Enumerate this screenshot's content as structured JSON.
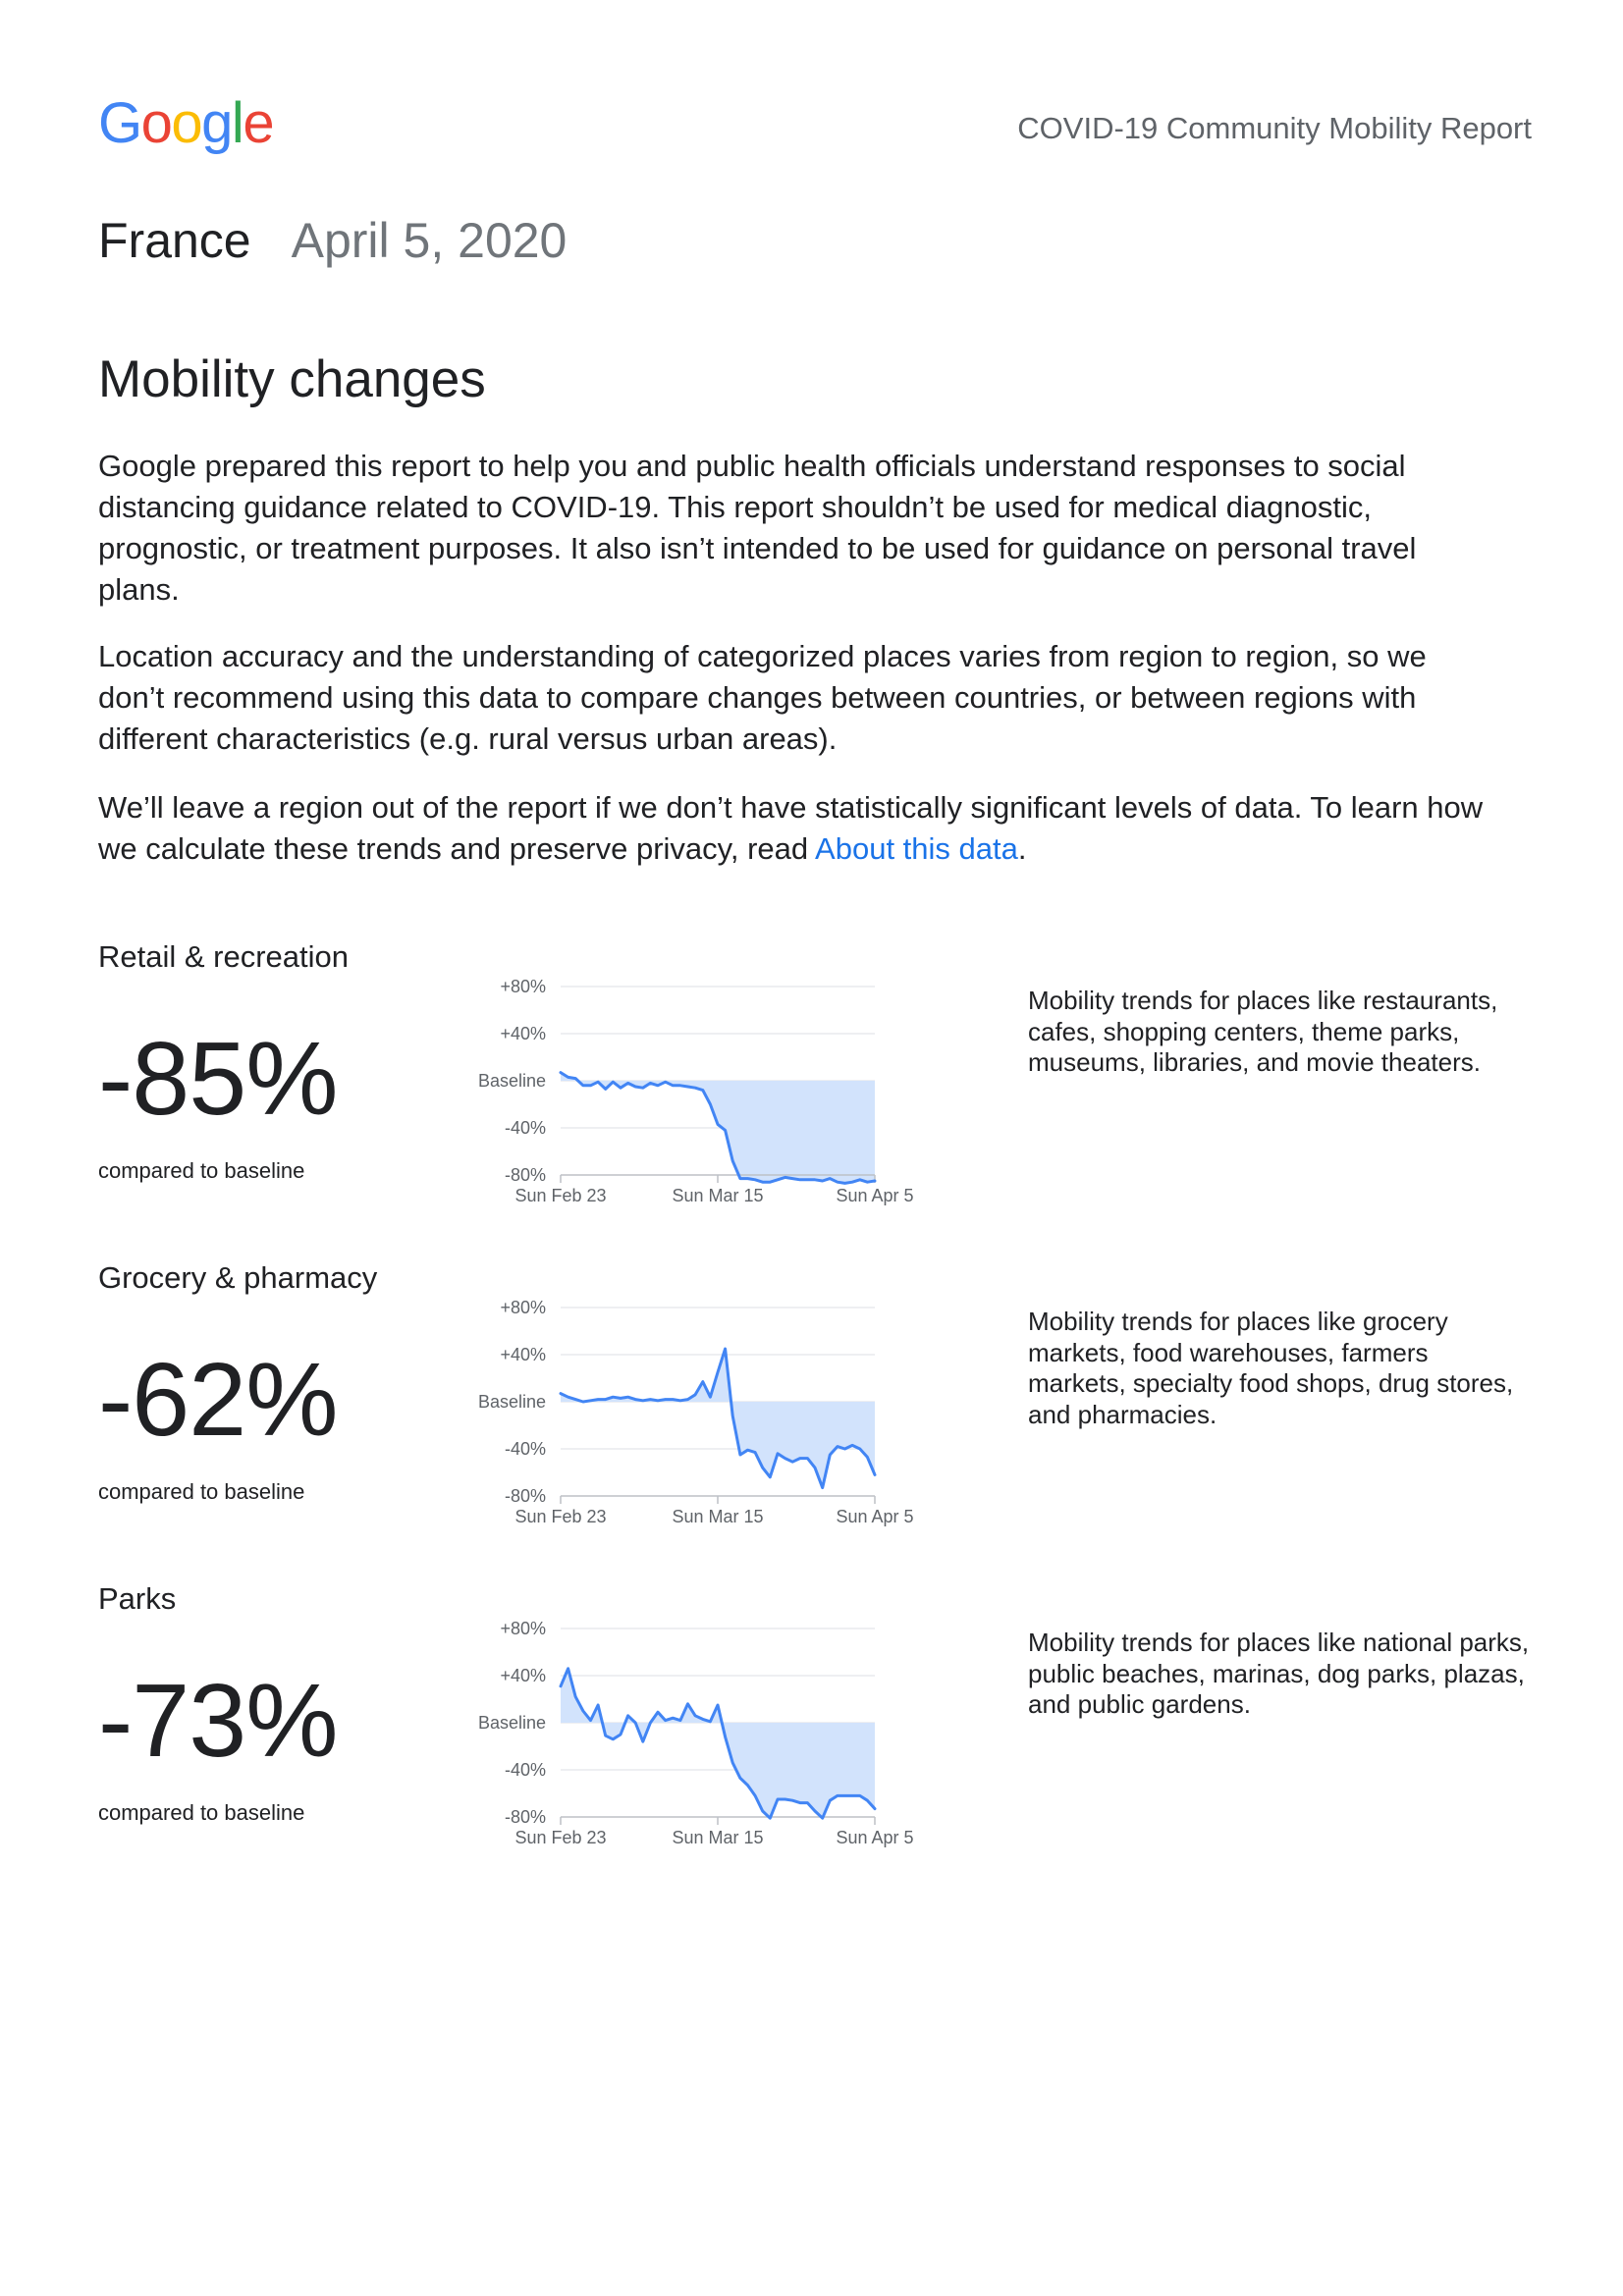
{
  "header": {
    "logo": [
      {
        "char": "G",
        "color": "#4285F4"
      },
      {
        "char": "o",
        "color": "#EA4335"
      },
      {
        "char": "o",
        "color": "#FBBC05"
      },
      {
        "char": "g",
        "color": "#4285F4"
      },
      {
        "char": "l",
        "color": "#34A853"
      },
      {
        "char": "e",
        "color": "#EA4335"
      }
    ],
    "report_title": "COVID-19 Community Mobility Report"
  },
  "title": {
    "country": "France",
    "date": "April 5, 2020"
  },
  "section_heading": "Mobility changes",
  "intro": {
    "paragraph_1": [
      "Google prepared this report to help you and public health officials understand responses to social",
      "distancing guidance related to COVID-19. This report shouldn’t be used for medical diagnostic,",
      "prognostic, or treatment purposes. It also isn’t intended to be used for guidance on personal travel",
      "plans."
    ],
    "paragraph_2": [
      "Location accuracy and the understanding of categorized places varies from region to region, so we",
      "don’t recommend using this data to compare changes between countries, or between regions with",
      "different characteristics (e.g. rural versus urban areas)."
    ],
    "paragraph_3": {
      "line_1": "We’ll leave a region out of the report if we don’t have statistically significant levels of data. To learn how",
      "line_2_text": "we calculate these trends and preserve privacy, read ",
      "link_text": "About this data",
      "line_2_end": "."
    }
  },
  "categories": [
    {
      "change": "-85%",
      "compared": "compared to baseline",
      "description": [
        "Mobility trends for places like restaurants,",
        "cafes, shopping centers, theme parks,",
        "museums, libraries, and movie theaters."
      ]
    },
    {
      "change": "-62%",
      "compared": "compared to baseline",
      "description": [
        "Mobility trends for places like grocery",
        "markets, food warehouses, farmers",
        "markets, specialty food shops, drug stores,",
        "and pharmacies."
      ]
    },
    {
      "change": "-73%",
      "compared": "compared to baseline",
      "description": [
        "Mobility trends for places like national parks,",
        "public beaches, marinas, dog parks, plazas,",
        "and public gardens."
      ]
    }
  ],
  "colors": {
    "text": "#202124",
    "muted": "#5f6368",
    "link": "#1a73e8",
    "line": "#4285f4",
    "fill": "#d2e3fc",
    "grid": "#e8eaed",
    "axis": "#bdc1c6"
  },
  "chart_data": [
    {
      "type": "line",
      "title": "Retail & recreation",
      "xlabel": "",
      "ylabel": "",
      "ylim": [
        -80,
        80
      ],
      "y_ticks": [
        80,
        40,
        0,
        -40,
        -80
      ],
      "y_tick_labels": [
        "+80%",
        "+40%",
        "Baseline",
        "-40%",
        "-80%"
      ],
      "x_ticks": [
        0,
        21,
        42
      ],
      "x_tick_labels": [
        "Sun Feb 23",
        "Sun Mar 15",
        "Sun Apr 5"
      ],
      "values": [
        7,
        3,
        2,
        -4,
        -4,
        -1,
        -7,
        -1,
        -6,
        -2,
        -5,
        -6,
        -2,
        -4,
        -1,
        -4,
        -4,
        -5,
        -6,
        -8,
        -20,
        -37,
        -42,
        -68,
        -83,
        -83,
        -84,
        -86,
        -86,
        -84,
        -82,
        -83,
        -84,
        -84,
        -84,
        -85,
        -83,
        -86,
        -87,
        -86,
        -84,
        -86,
        -85
      ]
    },
    {
      "type": "line",
      "title": "Grocery & pharmacy",
      "xlabel": "",
      "ylabel": "",
      "ylim": [
        -80,
        80
      ],
      "y_ticks": [
        80,
        40,
        0,
        -40,
        -80
      ],
      "y_tick_labels": [
        "+80%",
        "+40%",
        "Baseline",
        "-40%",
        "-80%"
      ],
      "x_ticks": [
        0,
        21,
        42
      ],
      "x_tick_labels": [
        "Sun Feb 23",
        "Sun Mar 15",
        "Sun Apr 5"
      ],
      "values": [
        7,
        4,
        2,
        0,
        1,
        2,
        2,
        4,
        3,
        4,
        2,
        1,
        2,
        1,
        2,
        2,
        1,
        2,
        6,
        17,
        4,
        25,
        45,
        -12,
        -45,
        -41,
        -43,
        -56,
        -64,
        -44,
        -48,
        -51,
        -48,
        -48,
        -56,
        -73,
        -45,
        -38,
        -40,
        -37,
        -40,
        -47,
        -62
      ]
    },
    {
      "type": "line",
      "title": "Parks",
      "xlabel": "",
      "ylabel": "",
      "ylim": [
        -80,
        80
      ],
      "y_ticks": [
        80,
        40,
        0,
        -40,
        -80
      ],
      "y_tick_labels": [
        "+80%",
        "+40%",
        "Baseline",
        "-40%",
        "-80%"
      ],
      "x_ticks": [
        0,
        21,
        42
      ],
      "x_tick_labels": [
        "Sun Feb 23",
        "Sun Mar 15",
        "Sun Apr 5"
      ],
      "values": [
        31,
        46,
        22,
        10,
        2,
        15,
        -11,
        -14,
        -10,
        6,
        0,
        -16,
        0,
        9,
        2,
        4,
        2,
        16,
        6,
        3,
        1,
        15,
        -12,
        -34,
        -47,
        -53,
        -62,
        -75,
        -81,
        -65,
        -65,
        -66,
        -68,
        -68,
        -75,
        -81,
        -66,
        -62,
        -62,
        -62,
        -62,
        -66,
        -73
      ]
    }
  ]
}
